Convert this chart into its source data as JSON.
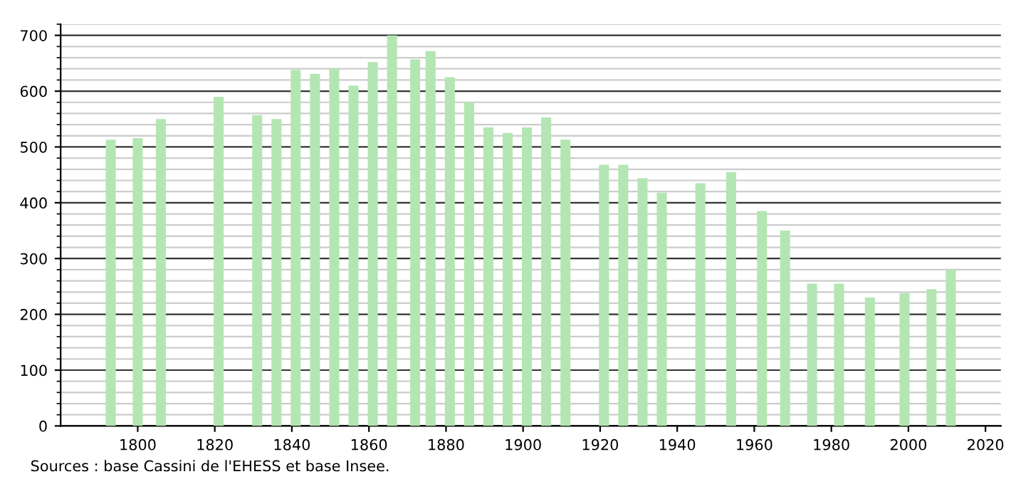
{
  "chart_data": {
    "type": "bar",
    "x": [
      1793,
      1800,
      1806,
      1821,
      1831,
      1836,
      1841,
      1846,
      1851,
      1856,
      1861,
      1866,
      1872,
      1876,
      1881,
      1886,
      1891,
      1896,
      1901,
      1906,
      1911,
      1921,
      1926,
      1931,
      1936,
      1946,
      1954,
      1962,
      1968,
      1975,
      1982,
      1990,
      1999,
      2006,
      2011
    ],
    "values": [
      513,
      516,
      550,
      590,
      557,
      550,
      638,
      631,
      640,
      610,
      652,
      700,
      657,
      672,
      625,
      580,
      535,
      525,
      535,
      553,
      513,
      468,
      468,
      444,
      418,
      435,
      455,
      385,
      350,
      255,
      255,
      230,
      238,
      245,
      280
    ],
    "color": "#b3e6b3",
    "xlim": [
      1780,
      2024
    ],
    "xticks": [
      1800,
      1820,
      1840,
      1860,
      1880,
      1900,
      1920,
      1940,
      1960,
      1980,
      2000,
      2020
    ],
    "ylim": [
      0,
      720
    ],
    "yticks": [
      0,
      100,
      200,
      300,
      400,
      500,
      600,
      700
    ],
    "grid": "y",
    "annotations": [
      "Sources : base Cassini de l'EHESS et base Insee."
    ]
  }
}
